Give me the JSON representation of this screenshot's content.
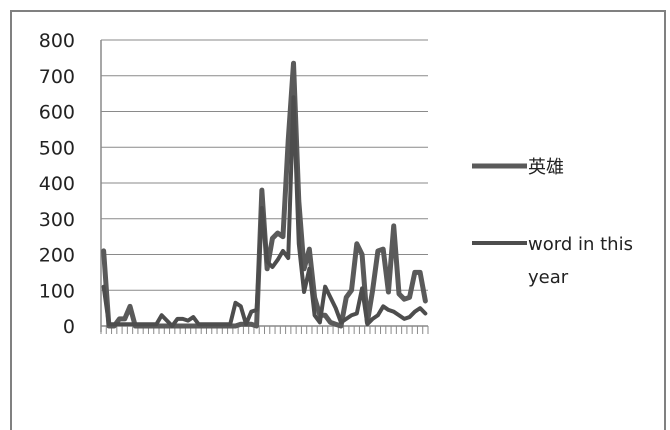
{
  "chart_data": {
    "type": "line",
    "ylim": [
      0,
      800
    ],
    "yticks": [
      "800",
      "700",
      "600",
      "500",
      "400",
      "300",
      "200",
      "100",
      "0"
    ],
    "grid": true,
    "legend_position": "right",
    "series": [
      {
        "name": "英雄",
        "color": "#5a5a5a",
        "values": [
          210,
          0,
          0,
          20,
          20,
          55,
          0,
          0,
          0,
          0,
          0,
          0,
          0,
          0,
          0,
          0,
          0,
          0,
          0,
          0,
          0,
          0,
          0,
          0,
          0,
          0,
          5,
          5,
          5,
          0,
          380,
          160,
          245,
          260,
          250,
          520,
          735,
          350,
          160,
          215,
          80,
          30,
          30,
          10,
          5,
          0,
          80,
          100,
          230,
          200,
          10,
          100,
          210,
          215,
          95,
          280,
          90,
          75,
          80,
          150,
          150,
          70
        ]
      },
      {
        "name": "word in this year",
        "color": "#4d4d4d",
        "values": [
          110,
          5,
          5,
          5,
          5,
          5,
          5,
          5,
          5,
          5,
          5,
          30,
          15,
          0,
          20,
          20,
          15,
          25,
          5,
          5,
          5,
          5,
          5,
          5,
          5,
          65,
          55,
          5,
          40,
          45,
          330,
          180,
          165,
          185,
          210,
          190,
          640,
          230,
          95,
          160,
          30,
          10,
          110,
          80,
          50,
          10,
          20,
          30,
          35,
          105,
          5,
          20,
          30,
          55,
          45,
          40,
          30,
          20,
          25,
          40,
          50,
          35
        ]
      }
    ]
  }
}
